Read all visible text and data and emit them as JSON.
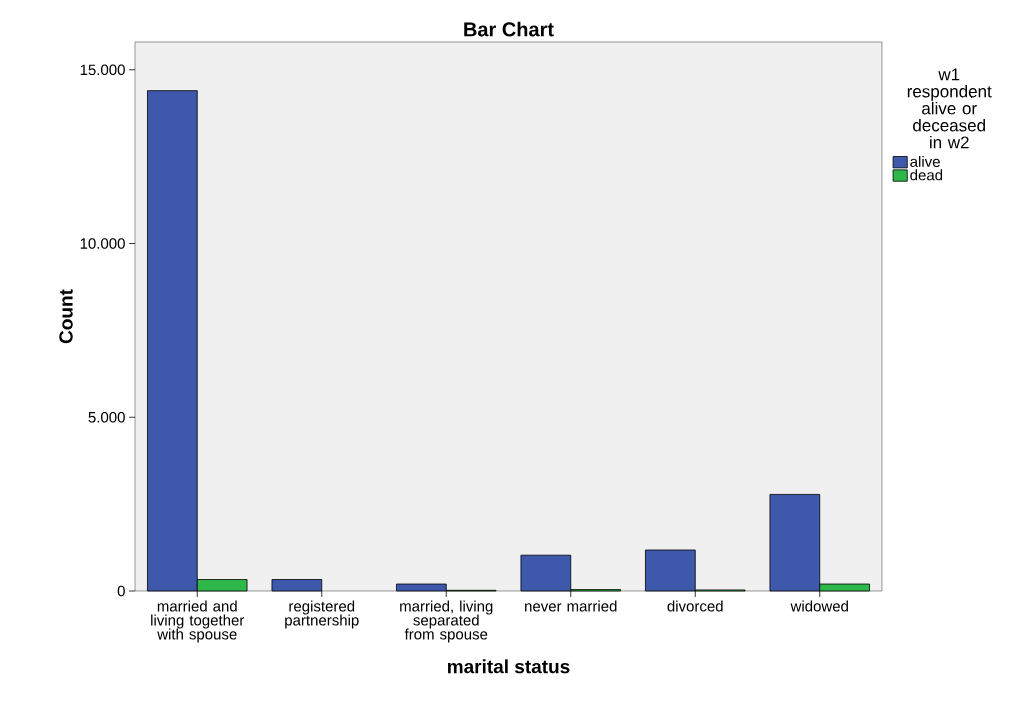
{
  "chart_data": {
    "type": "bar",
    "title": "Bar Chart",
    "xlabel": "marital status",
    "ylabel": "Count",
    "legend_title": "w1 respondent alive or deceased in w2",
    "categories": [
      "married and living together with spouse",
      "registered partnership",
      "married, living separated from spouse",
      "never married",
      "divorced",
      "widowed"
    ],
    "series": [
      {
        "name": "alive",
        "color": "#3e58ac",
        "values": [
          14400,
          330,
          200,
          1030,
          1180,
          2780
        ]
      },
      {
        "name": "dead",
        "color": "#2eb84a",
        "values": [
          330,
          null,
          20,
          40,
          30,
          200
        ]
      }
    ],
    "ylim": [
      0,
      15800
    ],
    "yticks": [
      {
        "value": 0,
        "label": "0"
      },
      {
        "value": 5000,
        "label": "5.000"
      },
      {
        "value": 10000,
        "label": "10.000"
      },
      {
        "value": 15000,
        "label": "15.000"
      }
    ],
    "grid": false,
    "legend": "top right"
  }
}
